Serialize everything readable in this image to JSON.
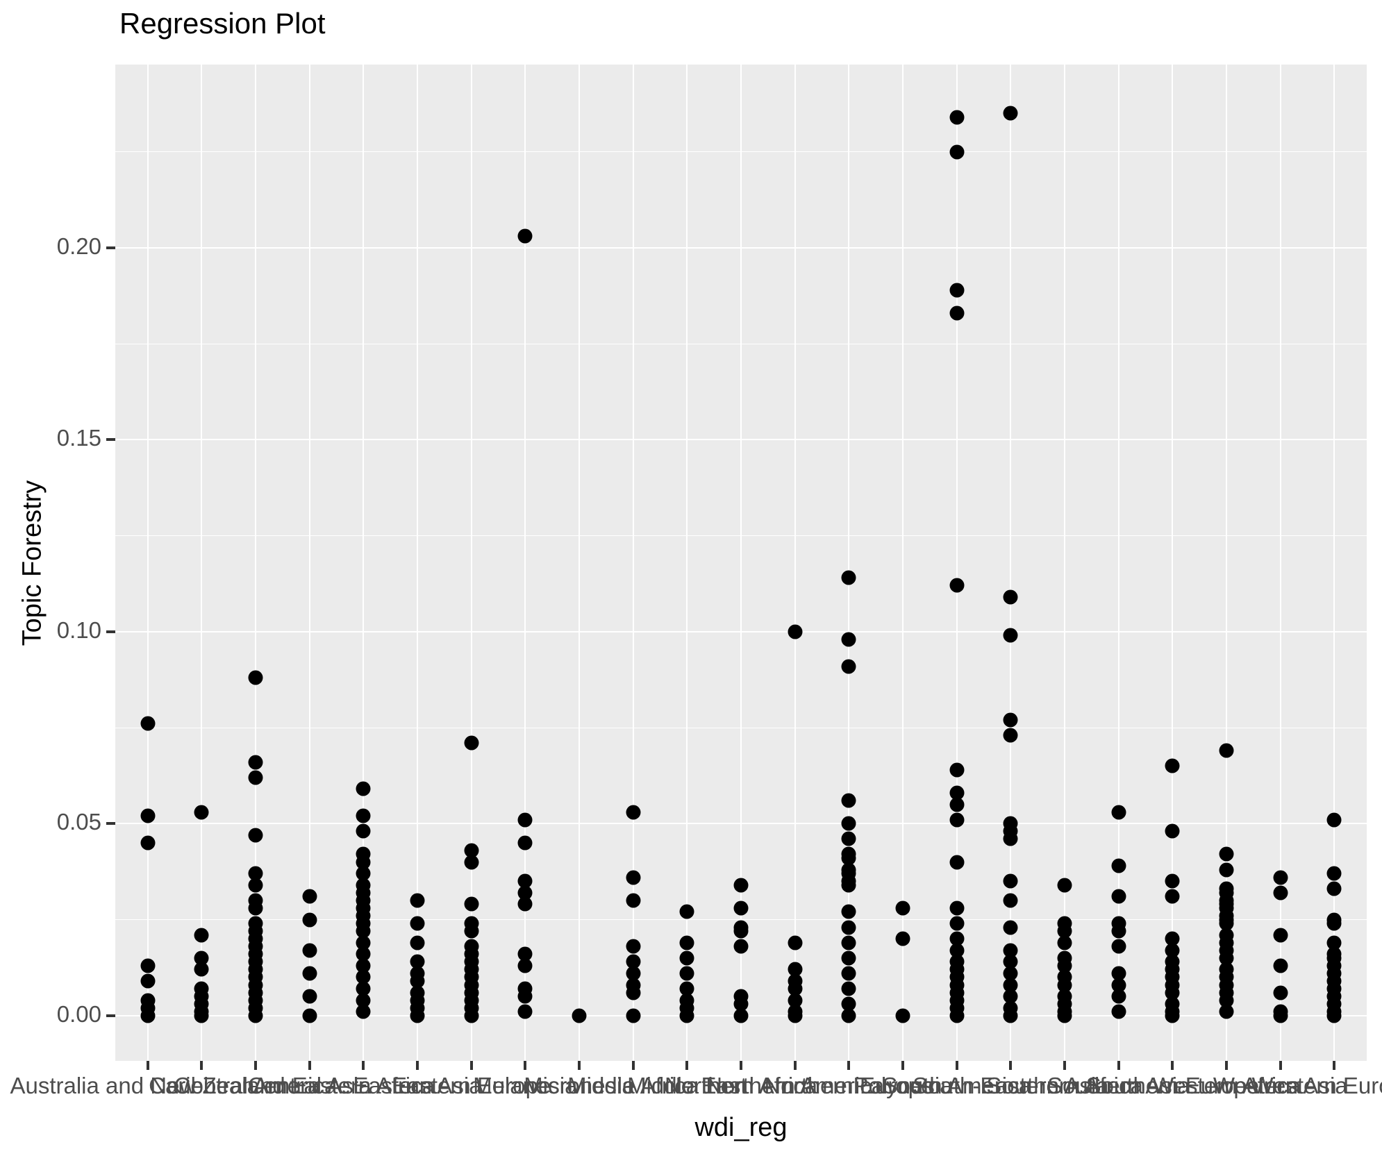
{
  "title": "Regression Plot",
  "colors": {
    "background": "#ffffff",
    "panel_background": "#EBEBEB",
    "gridline": "#ffffff",
    "point": "#000000",
    "tick_mark": "#333333",
    "tick_label": "#4D4D4D",
    "title_text": "#000000"
  },
  "chart_data": {
    "type": "scatter",
    "subtype": "strip-plot-categorical",
    "title": "Regression Plot",
    "xlabel": "wdi_reg",
    "ylabel": "Topic Forestry",
    "legend_position": "none",
    "grid": "on",
    "ylim": [
      -0.0118,
      0.2477
    ],
    "y_major_ticks": [
      0.0,
      0.05,
      0.1,
      0.15,
      0.2
    ],
    "y_tick_labels": [
      "0.00",
      "0.05",
      "0.10",
      "0.15",
      "0.20"
    ],
    "y_minor_ticks": [
      0.025,
      0.075,
      0.125,
      0.175,
      0.225
    ],
    "categories": [
      "Australia and New Zealand",
      "Caribbean",
      "Central America",
      "Central Asia",
      "Eastern Africa",
      "Eastern Asia",
      "Eastern Europe",
      "Melanesia",
      "Micronesia",
      "Middle Africa",
      "Middle East",
      "Northern Africa",
      "Northern America",
      "Northern Europe",
      "Polynesia",
      "South America",
      "South-Eastern Asia",
      "Southern Africa",
      "Southern Asia",
      "Southern Europe",
      "Western Africa",
      "Western Asia",
      "Western Europe"
    ],
    "values": [
      [
        0.076,
        0.052,
        0.045,
        0.013,
        0.009,
        0.004,
        0.002,
        0.0
      ],
      [
        0.053,
        0.021,
        0.015,
        0.012,
        0.007,
        0.005,
        0.003,
        0.001,
        0.0
      ],
      [
        0.088,
        0.066,
        0.062,
        0.047,
        0.037,
        0.034,
        0.03,
        0.028,
        0.024,
        0.022,
        0.02,
        0.018,
        0.016,
        0.014,
        0.012,
        0.01,
        0.008,
        0.006,
        0.004,
        0.002,
        0.0
      ],
      [
        0.031,
        0.025,
        0.017,
        0.011,
        0.005,
        0.0
      ],
      [
        0.059,
        0.052,
        0.048,
        0.042,
        0.04,
        0.037,
        0.034,
        0.032,
        0.03,
        0.028,
        0.026,
        0.024,
        0.022,
        0.019,
        0.016,
        0.013,
        0.01,
        0.007,
        0.004,
        0.001
      ],
      [
        0.03,
        0.024,
        0.019,
        0.014,
        0.011,
        0.009,
        0.006,
        0.004,
        0.002,
        0.0
      ],
      [
        0.071,
        0.043,
        0.04,
        0.029,
        0.024,
        0.022,
        0.018,
        0.016,
        0.014,
        0.012,
        0.01,
        0.008,
        0.006,
        0.004,
        0.002,
        0.0
      ],
      [
        0.203,
        0.051,
        0.045,
        0.035,
        0.032,
        0.029,
        0.016,
        0.013,
        0.007,
        0.005,
        0.001
      ],
      [
        0.0
      ],
      [
        0.053,
        0.036,
        0.03,
        0.018,
        0.014,
        0.011,
        0.008,
        0.006,
        0.0
      ],
      [
        0.027,
        0.019,
        0.015,
        0.011,
        0.007,
        0.004,
        0.002,
        0.0
      ],
      [
        0.034,
        0.028,
        0.023,
        0.022,
        0.018,
        0.005,
        0.003,
        0.0
      ],
      [
        0.1,
        0.019,
        0.012,
        0.009,
        0.007,
        0.004,
        0.001,
        0.0
      ],
      [
        0.114,
        0.098,
        0.091,
        0.056,
        0.05,
        0.046,
        0.042,
        0.041,
        0.038,
        0.037,
        0.035,
        0.034,
        0.027,
        0.023,
        0.019,
        0.015,
        0.011,
        0.007,
        0.003,
        0.0
      ],
      [
        0.028,
        0.02,
        0.0
      ],
      [
        0.234,
        0.225,
        0.189,
        0.183,
        0.112,
        0.064,
        0.058,
        0.055,
        0.051,
        0.04,
        0.028,
        0.024,
        0.02,
        0.017,
        0.014,
        0.012,
        0.01,
        0.008,
        0.006,
        0.004,
        0.002,
        0.0
      ],
      [
        0.235,
        0.109,
        0.099,
        0.077,
        0.073,
        0.05,
        0.048,
        0.046,
        0.035,
        0.03,
        0.023,
        0.017,
        0.014,
        0.011,
        0.008,
        0.005,
        0.002,
        0.0
      ],
      [
        0.034,
        0.024,
        0.022,
        0.019,
        0.015,
        0.013,
        0.01,
        0.008,
        0.005,
        0.003,
        0.001,
        0.0
      ],
      [
        0.053,
        0.039,
        0.031,
        0.024,
        0.022,
        0.018,
        0.011,
        0.008,
        0.005,
        0.001
      ],
      [
        0.065,
        0.048,
        0.035,
        0.031,
        0.02,
        0.017,
        0.014,
        0.012,
        0.01,
        0.008,
        0.006,
        0.003,
        0.001,
        0.0
      ],
      [
        0.069,
        0.042,
        0.038,
        0.033,
        0.032,
        0.03,
        0.029,
        0.028,
        0.026,
        0.025,
        0.024,
        0.021,
        0.019,
        0.017,
        0.015,
        0.012,
        0.01,
        0.008,
        0.006,
        0.004,
        0.001
      ],
      [
        0.036,
        0.032,
        0.021,
        0.013,
        0.006,
        0.001,
        0.0
      ],
      [
        0.051,
        0.037,
        0.033,
        0.025,
        0.024,
        0.019,
        0.016,
        0.015,
        0.013,
        0.011,
        0.009,
        0.007,
        0.005,
        0.003,
        0.001,
        0.0
      ]
    ]
  }
}
